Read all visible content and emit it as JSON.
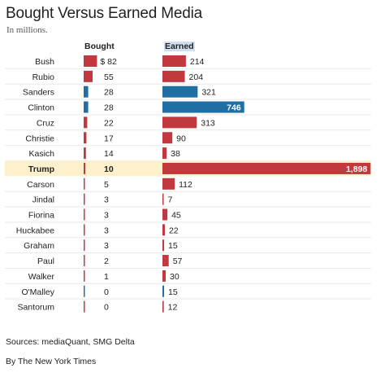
{
  "chart_data": {
    "type": "bar",
    "title": "Bought Versus Earned Media",
    "subtitle": "In millions.",
    "series_headers": {
      "bought": "Bought",
      "earned": "Earned"
    },
    "currency_prefix": "$",
    "categories": [
      "Bush",
      "Rubio",
      "Sanders",
      "Clinton",
      "Cruz",
      "Christie",
      "Kasich",
      "Trump",
      "Carson",
      "Jindal",
      "Fiorina",
      "Huckabee",
      "Graham",
      "Paul",
      "Walker",
      "O'Malley",
      "Santorum"
    ],
    "series": [
      {
        "name": "Bought",
        "values": [
          82,
          55,
          28,
          28,
          22,
          17,
          14,
          10,
          5,
          3,
          3,
          3,
          3,
          2,
          1,
          0,
          0
        ]
      },
      {
        "name": "Earned",
        "values": [
          214,
          204,
          321,
          746,
          313,
          90,
          38,
          1898,
          112,
          7,
          45,
          22,
          15,
          57,
          30,
          15,
          12
        ]
      }
    ],
    "value_labels": {
      "bought": [
        "82",
        "55",
        "28",
        "28",
        "22",
        "17",
        "14",
        "10",
        "5",
        "3",
        "3",
        "3",
        "3",
        "2",
        "1",
        "0",
        "0"
      ],
      "earned": [
        "214",
        "204",
        "321",
        "746",
        "313",
        "90",
        "38",
        "1,898",
        "112",
        "7",
        "45",
        "22",
        "15",
        "57",
        "30",
        "15",
        "12"
      ]
    },
    "party": [
      "R",
      "R",
      "D",
      "D",
      "R",
      "R",
      "R",
      "R",
      "R",
      "R",
      "R",
      "R",
      "R",
      "R",
      "R",
      "D",
      "R"
    ],
    "highlight": "Trump",
    "colors": {
      "R": "#c1393f",
      "D": "#1f6fa5",
      "highlight_row": "#fdf1cd"
    }
  },
  "footer": {
    "sources": "Sources: mediaQuant, SMG Delta",
    "credit": "By The New York Times"
  }
}
